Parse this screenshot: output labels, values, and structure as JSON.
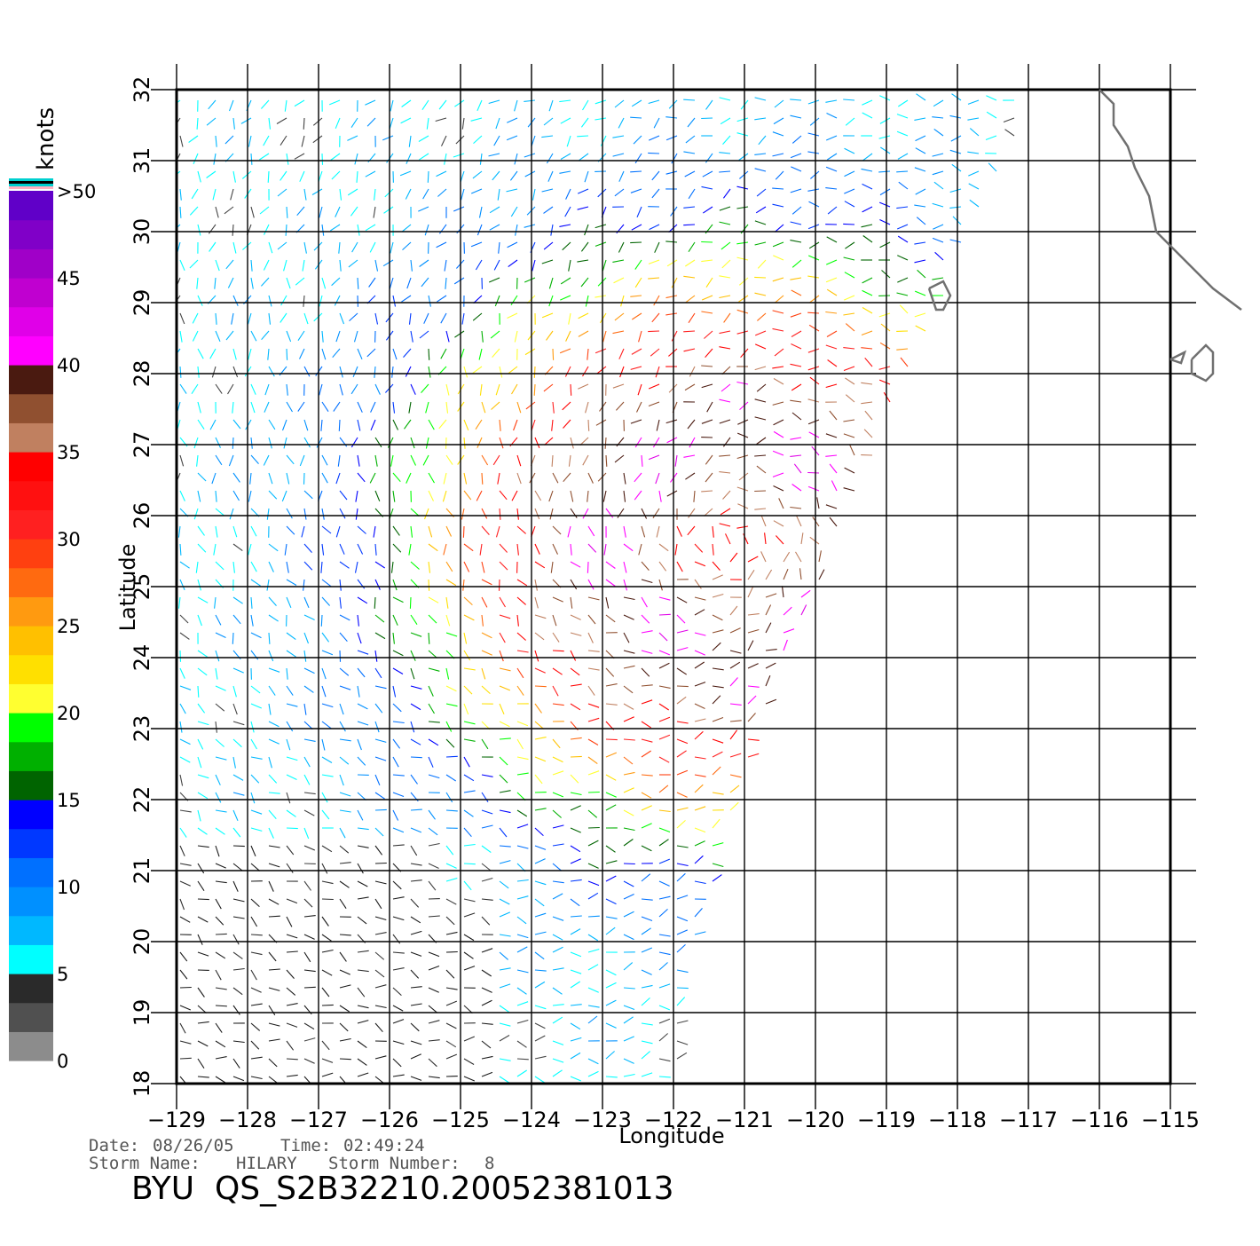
{
  "colorbar": {
    "unit_label": "knots",
    "ticks": [
      "0",
      "5",
      "10",
      "15",
      "20",
      "25",
      "30",
      "35",
      "40",
      "45",
      ">50"
    ],
    "segments": [
      {
        "from": 0,
        "to": 5,
        "colors": [
          "#8c8c8c",
          "#505050",
          "#2a2a2a"
        ]
      },
      {
        "from": 5,
        "to": 10,
        "colors": [
          "#00ffff",
          "#00b8ff",
          "#0090ff"
        ]
      },
      {
        "from": 10,
        "to": 15,
        "colors": [
          "#0070ff",
          "#0038ff",
          "#0000ff"
        ]
      },
      {
        "from": 15,
        "to": 20,
        "colors": [
          "#006400",
          "#00b000",
          "#00ff00"
        ]
      },
      {
        "from": 20,
        "to": 25,
        "colors": [
          "#ffff30",
          "#ffe000",
          "#ffc000"
        ]
      },
      {
        "from": 25,
        "to": 30,
        "colors": [
          "#ff9a10",
          "#ff6a10",
          "#ff4010"
        ]
      },
      {
        "from": 30,
        "to": 35,
        "colors": [
          "#ff2020",
          "#ff1010",
          "#ff0000"
        ]
      },
      {
        "from": 35,
        "to": 40,
        "colors": [
          "#c08060",
          "#905030",
          "#4a1a10"
        ]
      },
      {
        "from": 40,
        "to": 45,
        "colors": [
          "#ff00ff",
          "#e000e8",
          "#c000d0"
        ]
      },
      {
        "from": 45,
        "to": 50,
        "colors": [
          "#a000c8",
          "#8000c8",
          "#6000c8"
        ]
      }
    ],
    "top_stripes": [
      "#ffb0c0",
      "#00d0d0",
      "#000000",
      "#00d0d0"
    ]
  },
  "map": {
    "lon_range": [
      -129,
      -115
    ],
    "lat_range": [
      18,
      32
    ],
    "x_ticks": [
      "-129",
      "-128",
      "-127",
      "-126",
      "-125",
      "-124",
      "-123",
      "-122",
      "-121",
      "-120",
      "-119",
      "-118",
      "-117",
      "-116",
      "-115"
    ],
    "y_ticks": [
      "18",
      "19",
      "20",
      "21",
      "22",
      "23",
      "24",
      "25",
      "26",
      "27",
      "28",
      "29",
      "30",
      "31",
      "32"
    ],
    "xlabel": "Longitude",
    "ylabel": "Latitude",
    "grid": true,
    "coast_color": "#707070",
    "coastline": [
      [
        -116.0,
        32.0
      ],
      [
        -115.8,
        31.8
      ],
      [
        -115.8,
        31.5
      ],
      [
        -115.6,
        31.2
      ],
      [
        -115.5,
        30.9
      ],
      [
        -115.3,
        30.5
      ],
      [
        -115.2,
        30.0
      ],
      [
        -114.9,
        29.7
      ],
      [
        -114.6,
        29.4
      ],
      [
        -114.4,
        29.2
      ],
      [
        -114.0,
        28.9
      ]
    ],
    "islands": [
      [
        [
          -118.4,
          29.2
        ],
        [
          -118.2,
          29.3
        ],
        [
          -118.1,
          29.1
        ],
        [
          -118.2,
          28.9
        ],
        [
          -118.3,
          28.9
        ],
        [
          -118.4,
          29.2
        ]
      ],
      [
        [
          -114.7,
          28.2
        ],
        [
          -114.5,
          28.4
        ],
        [
          -114.4,
          28.3
        ],
        [
          -114.4,
          28.0
        ],
        [
          -114.5,
          27.9
        ],
        [
          -114.7,
          28.0
        ],
        [
          -114.7,
          28.2
        ]
      ],
      [
        [
          -115.0,
          28.2
        ],
        [
          -114.8,
          28.3
        ],
        [
          -114.85,
          28.15
        ],
        [
          -115.0,
          28.2
        ]
      ]
    ],
    "swath": {
      "left_edge_lon": -129,
      "right_edge": [
        [
          -116.9,
          32.0
        ],
        [
          -118.1,
          29.3
        ],
        [
          -119.2,
          26.8
        ],
        [
          -120.3,
          24.3
        ],
        [
          -121.1,
          22.0
        ],
        [
          -121.7,
          20.0
        ],
        [
          -122.0,
          18.0
        ]
      ]
    },
    "vector_step_deg": 0.25,
    "vector_length_deg": 0.16
  },
  "footer": {
    "date_label": "Date:",
    "date_value": "08/26/05",
    "time_label": "Time:",
    "time_value": "02:49:24",
    "storm_name_label": "Storm Name:",
    "storm_name_value": "HILARY",
    "storm_number_label": "Storm Number:",
    "storm_number_value": "8",
    "product_title": "BYU  QS_S2B32210.20052381013"
  }
}
